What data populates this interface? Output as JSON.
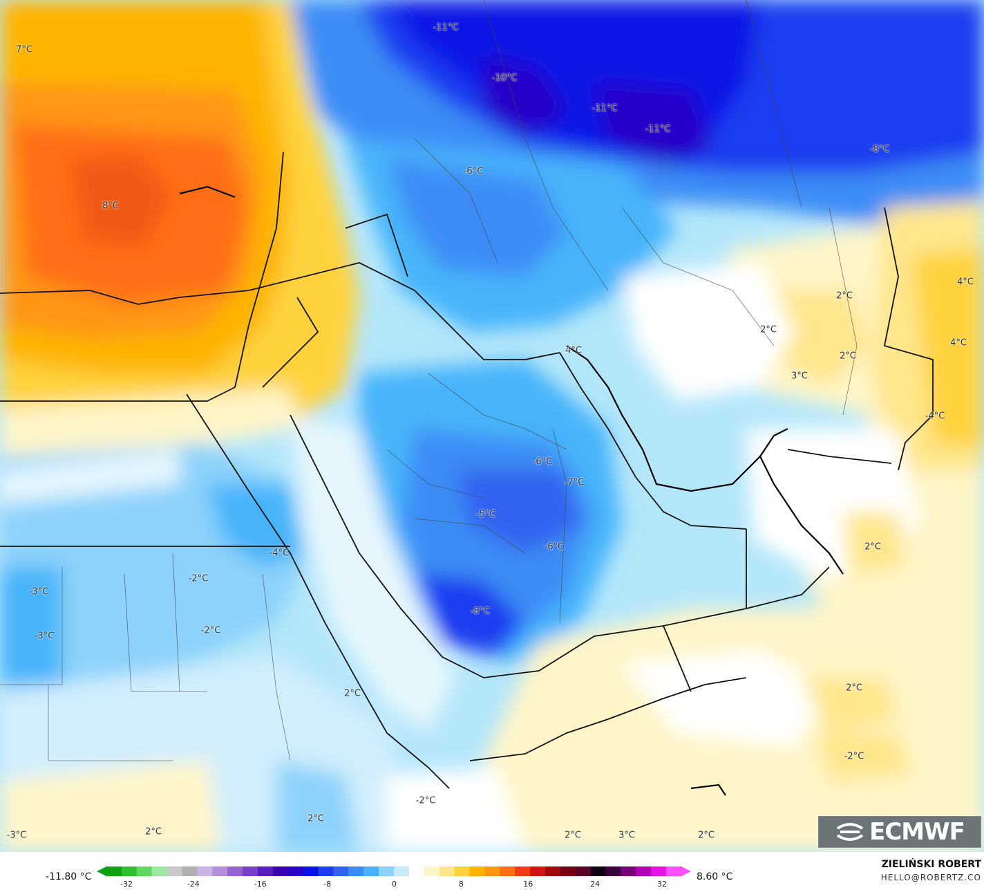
{
  "map": {
    "labels": [
      {
        "text": "7°C"
      },
      {
        "text": "8°C"
      },
      {
        "text": "-11°C"
      },
      {
        "text": "-10°C"
      },
      {
        "text": "-11°C"
      },
      {
        "text": "-11°C"
      },
      {
        "text": "-8°C"
      },
      {
        "text": "-6°C"
      },
      {
        "text": "2°C"
      },
      {
        "text": "4°C"
      },
      {
        "text": "2°C"
      },
      {
        "text": "2°C"
      },
      {
        "text": "4°C"
      },
      {
        "text": "3°C"
      },
      {
        "text": "-4°C"
      },
      {
        "text": "4°C"
      },
      {
        "text": "-6°C"
      },
      {
        "text": "-7°C"
      },
      {
        "text": "-5°C"
      },
      {
        "text": "-6°C"
      },
      {
        "text": "-4°C"
      },
      {
        "text": "-2°C"
      },
      {
        "text": "-3°C"
      },
      {
        "text": "-3°C"
      },
      {
        "text": "-2°C"
      },
      {
        "text": "-8°C"
      },
      {
        "text": "2°C"
      },
      {
        "text": "-2°C"
      },
      {
        "text": "2°C"
      },
      {
        "text": "2°C"
      },
      {
        "text": "-2°C"
      },
      {
        "text": "-3°C"
      },
      {
        "text": "2°C"
      },
      {
        "text": "2°C"
      },
      {
        "text": "3°C"
      },
      {
        "text": "2°C"
      },
      {
        "text": "2°C"
      }
    ]
  },
  "logo": {
    "text": "ECMWF"
  },
  "legend": {
    "min": "-11.80 °C",
    "max": "8.60 °C",
    "ticks": [
      "-32",
      "-24",
      "-16",
      "-8",
      "0",
      "8",
      "16",
      "24",
      "32"
    ],
    "colors": [
      "#10a010",
      "#2fc02f",
      "#5fd85f",
      "#9ee89e",
      "#c8c8c8",
      "#b0b0b0",
      "#c8b4e6",
      "#b48cdc",
      "#9664d2",
      "#7840c8",
      "#5a1ebe",
      "#3c00b4",
      "#2800c8",
      "#0a14e6",
      "#1e3cf0",
      "#3264f0",
      "#3c8cf5",
      "#46b4fa",
      "#8cd2fa",
      "#c8ebfc",
      "#ffffff",
      "#fff5c8",
      "#ffe68c",
      "#ffd23c",
      "#ffb400",
      "#ff9614",
      "#ff6e14",
      "#f03c14",
      "#d21414",
      "#a00a0a",
      "#780014",
      "#5a0028",
      "#140014",
      "#3c003c",
      "#780078",
      "#b400b4",
      "#e614e6",
      "#ff50ff"
    ]
  },
  "author": {
    "name": "ZIELIŃSKI ROBERT",
    "email": "HELLO@ROBERTZ.CO"
  }
}
